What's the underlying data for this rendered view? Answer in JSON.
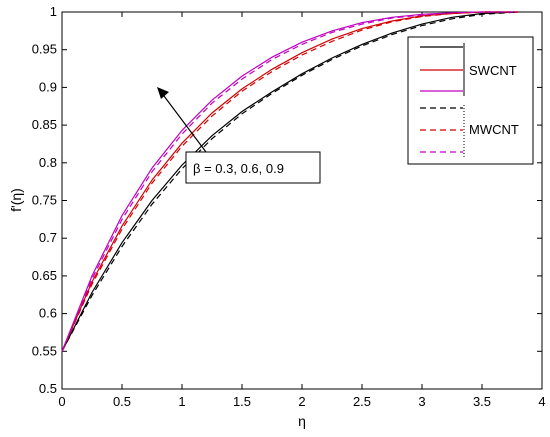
{
  "chart_data": {
    "type": "line",
    "title": "",
    "xlabel": "η",
    "ylabel": "f'(η)",
    "xlim": [
      0,
      4
    ],
    "ylim": [
      0.5,
      1
    ],
    "xticks": [
      "0",
      "0.5",
      "1",
      "1.5",
      "2",
      "2.5",
      "3",
      "3.5",
      "4"
    ],
    "yticks": [
      "0.5",
      "0.55",
      "0.6",
      "0.65",
      "0.7",
      "0.75",
      "0.8",
      "0.85",
      "0.9",
      "0.95",
      "1"
    ],
    "grid": false,
    "legend_position": "top-right",
    "legend_labels": [
      "SWCNT",
      "MWCNT"
    ],
    "annotation": "β = 0.3, 0.6, 0.9",
    "series": [
      {
        "group": "SWCNT",
        "color": "#000000",
        "dash": "solid",
        "x": [
          0,
          0.25,
          0.5,
          0.75,
          1.0,
          1.25,
          1.5,
          1.75,
          2.0,
          2.25,
          2.5,
          2.75,
          3.0,
          3.25,
          3.5,
          3.8
        ],
        "y": [
          0.55,
          0.628,
          0.694,
          0.75,
          0.797,
          0.836,
          0.868,
          0.894,
          0.918,
          0.939,
          0.957,
          0.972,
          0.984,
          0.993,
          0.998,
          1.0
        ]
      },
      {
        "group": "SWCNT",
        "color": "#d40000",
        "dash": "solid",
        "x": [
          0,
          0.25,
          0.5,
          0.75,
          1.0,
          1.25,
          1.5,
          1.75,
          2.0,
          2.25,
          2.5,
          2.75,
          3.0,
          3.25,
          3.5,
          3.8
        ],
        "y": [
          0.55,
          0.642,
          0.716,
          0.777,
          0.826,
          0.866,
          0.898,
          0.924,
          0.946,
          0.964,
          0.978,
          0.988,
          0.995,
          0.998,
          1.0,
          1.0
        ]
      },
      {
        "group": "SWCNT",
        "color": "#c000c0",
        "dash": "solid",
        "x": [
          0,
          0.25,
          0.5,
          0.75,
          1.0,
          1.25,
          1.5,
          1.75,
          2.0,
          2.25,
          2.5,
          2.75,
          3.0,
          3.25,
          3.5,
          3.8
        ],
        "y": [
          0.55,
          0.65,
          0.73,
          0.793,
          0.843,
          0.883,
          0.915,
          0.94,
          0.96,
          0.975,
          0.986,
          0.993,
          0.997,
          0.999,
          1.0,
          1.0
        ]
      },
      {
        "group": "MWCNT",
        "color": "#000000",
        "dash": "dashed",
        "x": [
          0,
          0.25,
          0.5,
          0.75,
          1.0,
          1.25,
          1.5,
          1.75,
          2.0,
          2.25,
          2.5,
          2.75,
          3.0,
          3.25,
          3.5,
          3.8
        ],
        "y": [
          0.55,
          0.624,
          0.689,
          0.745,
          0.792,
          0.832,
          0.865,
          0.892,
          0.916,
          0.937,
          0.955,
          0.97,
          0.982,
          0.991,
          0.997,
          1.0
        ]
      },
      {
        "group": "MWCNT",
        "color": "#d40000",
        "dash": "dashed",
        "x": [
          0,
          0.25,
          0.5,
          0.75,
          1.0,
          1.25,
          1.5,
          1.75,
          2.0,
          2.25,
          2.5,
          2.75,
          3.0,
          3.25,
          3.5,
          3.8
        ],
        "y": [
          0.55,
          0.639,
          0.712,
          0.773,
          0.822,
          0.862,
          0.895,
          0.921,
          0.943,
          0.961,
          0.976,
          0.987,
          0.994,
          0.998,
          1.0,
          1.0
        ]
      },
      {
        "group": "MWCNT",
        "color": "#c000c0",
        "dash": "dashed",
        "x": [
          0,
          0.25,
          0.5,
          0.75,
          1.0,
          1.25,
          1.5,
          1.75,
          2.0,
          2.25,
          2.5,
          2.75,
          3.0,
          3.25,
          3.5,
          3.8
        ],
        "y": [
          0.55,
          0.646,
          0.725,
          0.788,
          0.838,
          0.879,
          0.911,
          0.937,
          0.957,
          0.973,
          0.984,
          0.992,
          0.996,
          0.999,
          1.0,
          1.0
        ]
      }
    ]
  }
}
